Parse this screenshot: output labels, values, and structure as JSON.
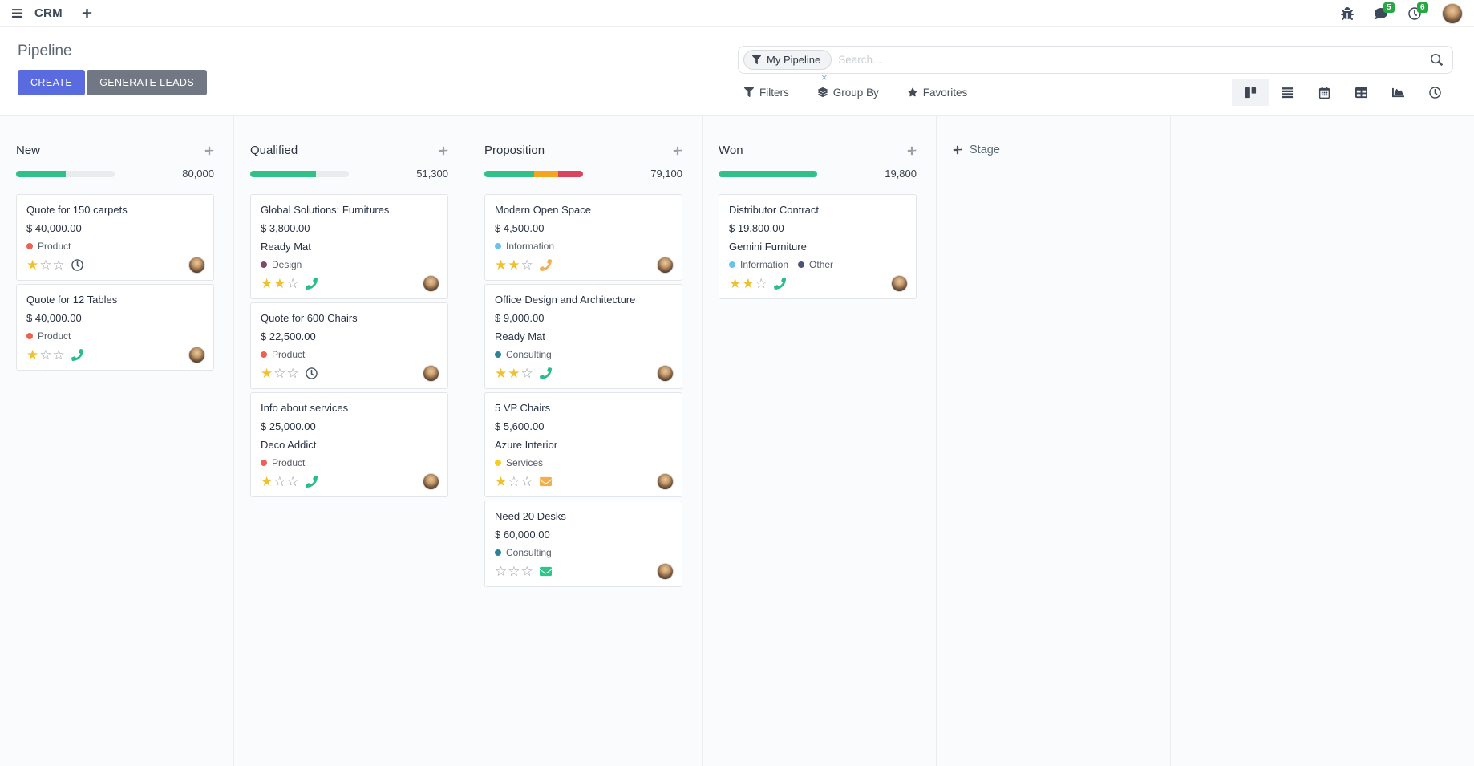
{
  "navbar": {
    "app_name": "CRM",
    "messages_badge": "5",
    "activities_badge": "6"
  },
  "control_panel": {
    "title": "Pipeline",
    "buttons": {
      "create": "CREATE",
      "generate_leads": "GENERATE LEADS"
    },
    "search": {
      "facet_label": "My Pipeline",
      "facet_remove": "×",
      "placeholder": "Search..."
    },
    "menus": [
      {
        "label": "Filters"
      },
      {
        "label": "Group By"
      },
      {
        "label": "Favorites"
      }
    ],
    "view_switcher": [
      {
        "name": "kanban",
        "active": true
      },
      {
        "name": "list",
        "active": false
      },
      {
        "name": "calendar",
        "active": false
      },
      {
        "name": "pivot",
        "active": false
      },
      {
        "name": "graph",
        "active": false
      },
      {
        "name": "activity",
        "active": false
      }
    ],
    "add_stage_label": "Stage"
  },
  "colors": {
    "primary": "#5a6be0",
    "secondary": "#717783",
    "success": "#30c088",
    "warning": "#f2a51d",
    "danger": "#d9455f",
    "badge_green": "#28a745",
    "star_gold": "#efc131",
    "progress_track": "#e9ecef"
  },
  "board": {
    "columns": [
      {
        "name": "New",
        "total": "80,000",
        "progress": [
          {
            "color": "#30c088",
            "pct": 50
          }
        ],
        "cards": [
          {
            "title": "Quote for 150 carpets",
            "amount": "$ 40,000.00",
            "partner": "",
            "tags": [
              {
                "label": "Product",
                "color": "#f06050"
              }
            ],
            "stars_filled": 1,
            "stars_total": 3,
            "activity": {
              "icon": "clock",
              "color": "#4a5360"
            }
          },
          {
            "title": "Quote for 12 Tables",
            "amount": "$ 40,000.00",
            "partner": "",
            "tags": [
              {
                "label": "Product",
                "color": "#f06050"
              }
            ],
            "stars_filled": 1,
            "stars_total": 3,
            "activity": {
              "icon": "phone",
              "color": "#2abd8a"
            }
          }
        ]
      },
      {
        "name": "Qualified",
        "total": "51,300",
        "progress": [
          {
            "color": "#30c088",
            "pct": 67
          }
        ],
        "cards": [
          {
            "title": "Global Solutions: Furnitures",
            "amount": "$ 3,800.00",
            "partner": "Ready Mat",
            "tags": [
              {
                "label": "Design",
                "color": "#814968"
              }
            ],
            "stars_filled": 2,
            "stars_total": 3,
            "activity": {
              "icon": "phone",
              "color": "#2abd8a"
            }
          },
          {
            "title": "Quote for 600 Chairs",
            "amount": "$ 22,500.00",
            "partner": "",
            "tags": [
              {
                "label": "Product",
                "color": "#f06050"
              }
            ],
            "stars_filled": 1,
            "stars_total": 3,
            "activity": {
              "icon": "clock",
              "color": "#4a5360"
            }
          },
          {
            "title": "Info about services",
            "amount": "$ 25,000.00",
            "partner": "Deco Addict",
            "tags": [
              {
                "label": "Product",
                "color": "#f06050"
              }
            ],
            "stars_filled": 1,
            "stars_total": 3,
            "activity": {
              "icon": "phone",
              "color": "#2abd8a"
            }
          }
        ]
      },
      {
        "name": "Proposition",
        "total": "79,100",
        "progress": [
          {
            "color": "#30c088",
            "pct": 50
          },
          {
            "color": "#f2a51d",
            "pct": 25
          },
          {
            "color": "#d9455f",
            "pct": 25
          }
        ],
        "cards": [
          {
            "title": "Modern Open Space",
            "amount": "$ 4,500.00",
            "partner": "",
            "tags": [
              {
                "label": "Information",
                "color": "#6cc1ed"
              }
            ],
            "stars_filled": 2,
            "stars_total": 3,
            "activity": {
              "icon": "phone",
              "color": "#f0b058"
            }
          },
          {
            "title": "Office Design and Architecture",
            "amount": "$ 9,000.00",
            "partner": "Ready Mat",
            "tags": [
              {
                "label": "Consulting",
                "color": "#2c8397"
              }
            ],
            "stars_filled": 2,
            "stars_total": 3,
            "activity": {
              "icon": "phone",
              "color": "#2abd8a"
            }
          },
          {
            "title": "5 VP Chairs",
            "amount": "$ 5,600.00",
            "partner": "Azure Interior",
            "tags": [
              {
                "label": "Services",
                "color": "#f7cd1f"
              }
            ],
            "stars_filled": 1,
            "stars_total": 3,
            "activity": {
              "icon": "envelope",
              "color": "#f3ae4e"
            }
          },
          {
            "title": "Need 20 Desks",
            "amount": "$ 60,000.00",
            "partner": "",
            "tags": [
              {
                "label": "Consulting",
                "color": "#2c8397"
              }
            ],
            "stars_filled": 0,
            "stars_total": 3,
            "activity": {
              "icon": "envelope",
              "color": "#2ec58c"
            }
          }
        ]
      },
      {
        "name": "Won",
        "total": "19,800",
        "progress": [
          {
            "color": "#30c088",
            "pct": 100
          }
        ],
        "cards": [
          {
            "title": "Distributor Contract",
            "amount": "$ 19,800.00",
            "partner": "Gemini Furniture",
            "tags": [
              {
                "label": "Information",
                "color": "#6cc1ed"
              },
              {
                "label": "Other",
                "color": "#475577"
              }
            ],
            "stars_filled": 2,
            "stars_total": 3,
            "activity": {
              "icon": "phone",
              "color": "#2abd8a"
            }
          }
        ]
      }
    ]
  }
}
